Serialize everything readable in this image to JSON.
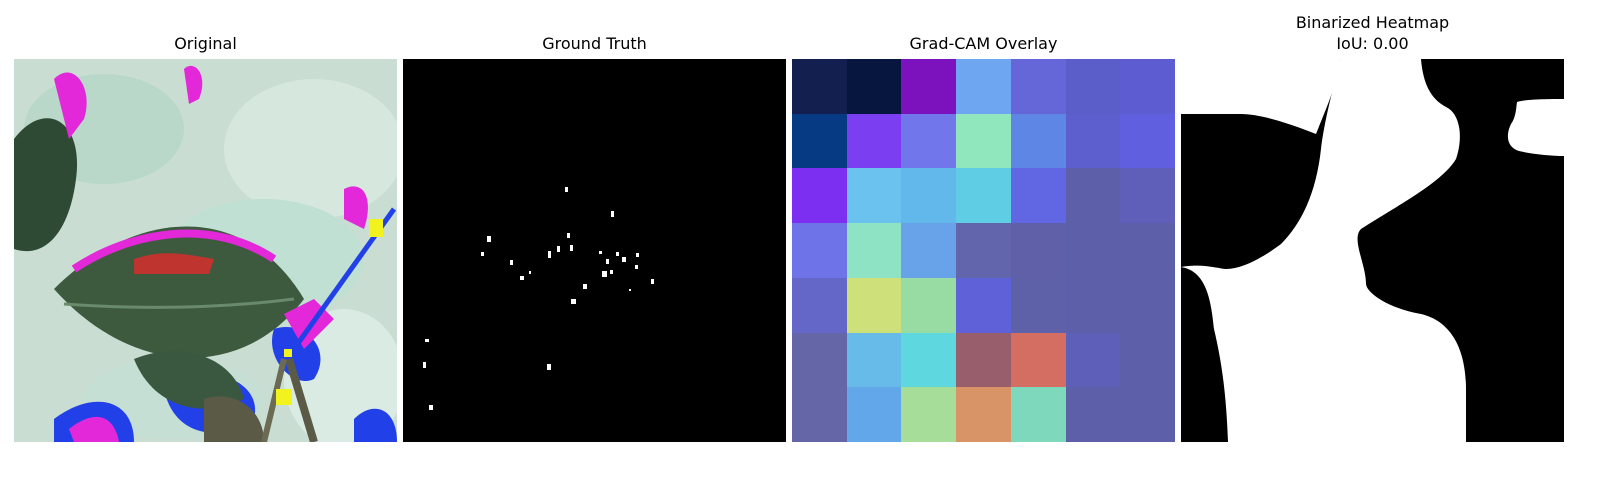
{
  "panels": [
    {
      "title": "Original",
      "image": "leaf-photo-color-distorted"
    },
    {
      "title": "Ground Truth",
      "image": "sparse-white-spots-on-black-mask"
    },
    {
      "title": "Grad-CAM Overlay",
      "image": "7x7-gradcam-heatmap-overlay"
    },
    {
      "title_line1": "Binarized Heatmap",
      "title_line2": "IoU: 0.00",
      "image": "binary-heatmap-white-blob-on-black"
    }
  ],
  "gradcam_grid": [
    [
      "#13204f",
      "#07163f",
      "#7b12bd",
      "#6ea6f2",
      "#6567d9",
      "#5b5dc8",
      "#5d5dd1"
    ],
    [
      "#063a82",
      "#7b3ff1",
      "#7177ea",
      "#90e7bd",
      "#5e86e5",
      "#5e5fcf",
      "#5f5fdf"
    ],
    [
      "#7d2ff1",
      "#6cc2ef",
      "#62b8eb",
      "#5fcde4",
      "#6166e3",
      "#5d60a9",
      "#5f5fba"
    ],
    [
      "#6e74e7",
      "#8ee3c5",
      "#68a3ea",
      "#6264ac",
      "#5f60a8",
      "#5d5fa8",
      "#5d5fa8"
    ],
    [
      "#6567c8",
      "#cde07a",
      "#98dca4",
      "#5f61d8",
      "#5e60a8",
      "#5d5fa8",
      "#5d5fa8"
    ],
    [
      "#6466a8",
      "#66bbe8",
      "#5fd7de",
      "#985e6b",
      "#d46e63",
      "#5d5fb8",
      "#5d5fa8"
    ],
    [
      "#6466a8",
      "#62a7e9",
      "#a6dd98",
      "#d89367",
      "#7ed8bb",
      "#5d5fa8",
      "#5d5fa8"
    ]
  ],
  "colors": {
    "mask_background": "#000000",
    "mask_foreground": "#ffffff"
  }
}
